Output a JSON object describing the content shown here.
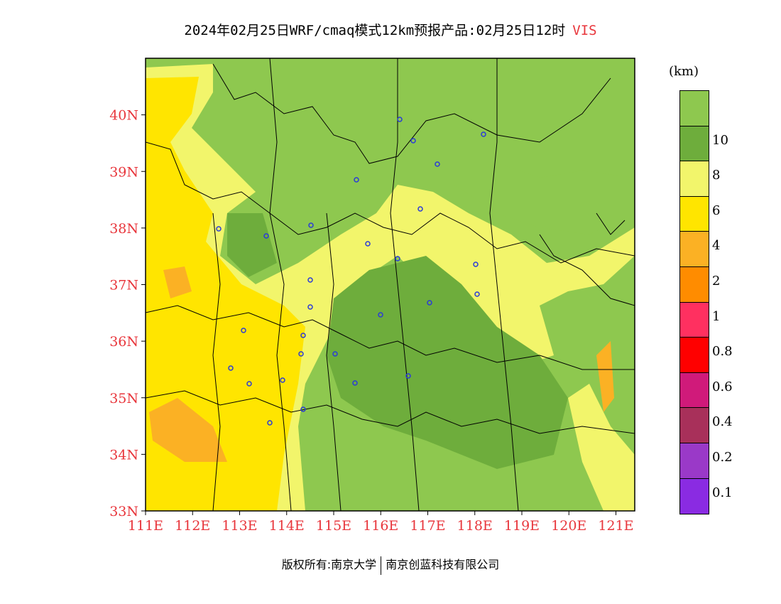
{
  "title": {
    "text": "2024年02月25日WRF/cmaq模式12km预报产品:02月25日12时",
    "variable": "VIS"
  },
  "map": {
    "lat_ticks": [
      "40N",
      "39N",
      "38N",
      "37N",
      "36N",
      "35N",
      "34N",
      "33N"
    ],
    "lon_ticks": [
      "111E",
      "112E",
      "113E",
      "114E",
      "115E",
      "116E",
      "117E",
      "118E",
      "119E",
      "120E",
      "121E"
    ],
    "lat_range": [
      33,
      41
    ],
    "lon_range": [
      111,
      121.4
    ]
  },
  "legend": {
    "unit": "(km)",
    "segments": [
      {
        "color": "#8ec84f"
      },
      {
        "color": "#6ead3c",
        "label": "10"
      },
      {
        "color": "#f2f56b",
        "label": "8"
      },
      {
        "color": "#ffe500",
        "label": "6"
      },
      {
        "color": "#fbb124",
        "label": "4"
      },
      {
        "color": "#ff8c00",
        "label": "2"
      },
      {
        "color": "#ff3060",
        "label": "1"
      },
      {
        "color": "#ff0000",
        "label": "0.8"
      },
      {
        "color": "#d01a7a",
        "label": "0.6"
      },
      {
        "color": "#a8305a",
        "label": "0.4"
      },
      {
        "color": "#9a39c8",
        "label": "0.2"
      },
      {
        "color": "#8a2be2",
        "label": "0.1"
      }
    ]
  },
  "footer": {
    "left": "版权所有:南京大学",
    "right": "南京创蓝科技有限公司"
  }
}
